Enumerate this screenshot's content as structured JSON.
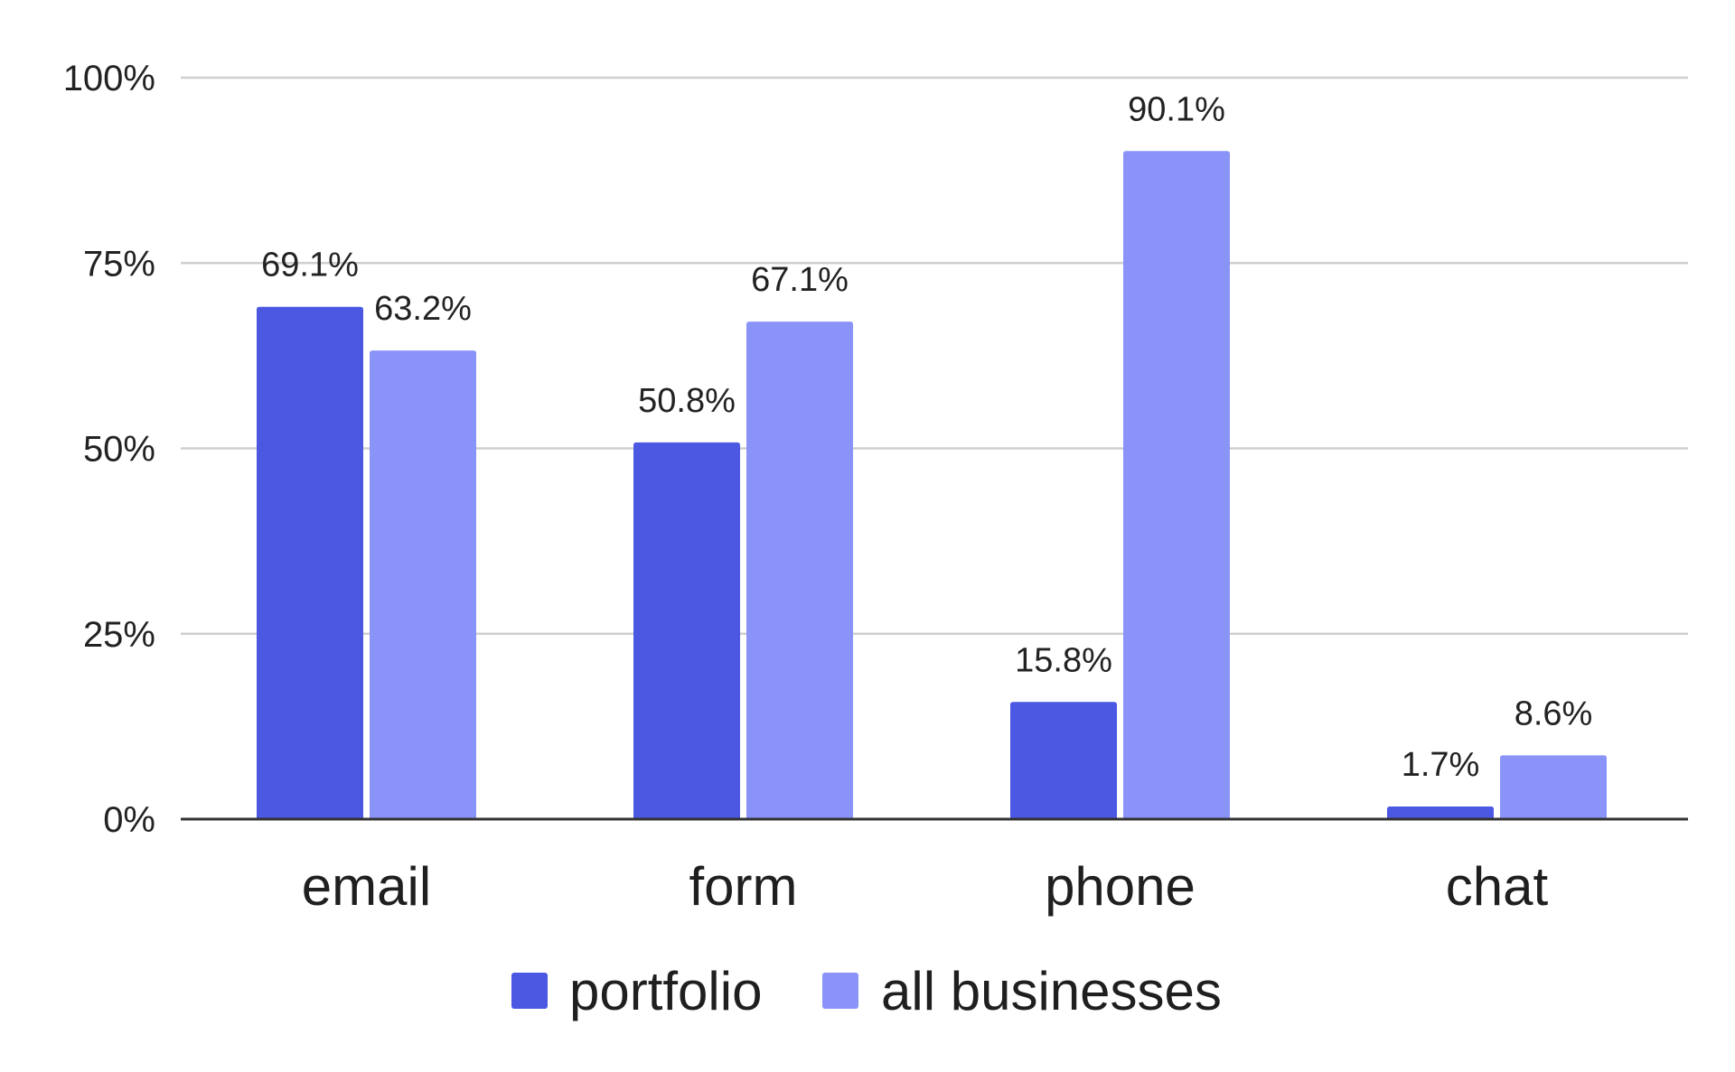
{
  "chart_data": {
    "type": "bar",
    "categories": [
      "email",
      "form",
      "phone",
      "chat"
    ],
    "series": [
      {
        "name": "portfolio",
        "values": [
          69.1,
          50.8,
          15.8,
          1.7
        ],
        "labels": [
          "69.1%",
          "50.8%",
          "15.8%",
          "1.7%"
        ],
        "color": "#4a58e2"
      },
      {
        "name": "all businesses",
        "values": [
          63.2,
          67.1,
          90.1,
          8.6
        ],
        "labels": [
          "63.2%",
          "67.1%",
          "90.1%",
          "8.6%"
        ],
        "color": "#8a93f8"
      }
    ],
    "yticks": [
      "0%",
      "25%",
      "50%",
      "75%",
      "100%"
    ],
    "ytick_values": [
      0,
      25,
      50,
      75,
      100
    ],
    "ylim": [
      0,
      100
    ],
    "grid": true,
    "legend": "bottom"
  }
}
